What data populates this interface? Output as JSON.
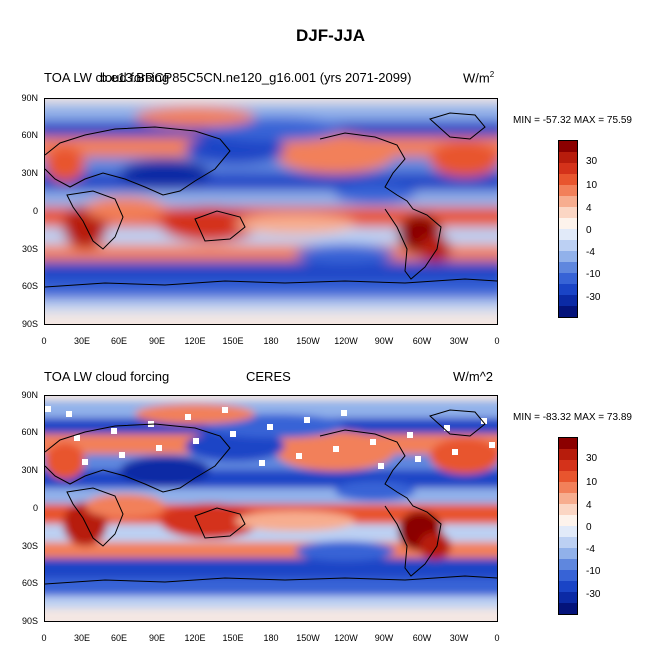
{
  "figure_title": "DJF-JJA",
  "panels": [
    {
      "id": "top",
      "left_title": "TOA LW cloud forcing",
      "center_title": "b.e13.BRCP85C5CN.ne120_g16.001 (yrs 2071-2099)",
      "units_base": "W/m",
      "units_sup": "2",
      "stats": "MIN = -57.32 MAX =  75.59"
    },
    {
      "id": "bottom",
      "left_title": "TOA LW cloud forcing",
      "center_title": "CERES",
      "units_base": "W/m^2",
      "units_sup": "",
      "stats": "MIN = -83.32 MAX =  73.89"
    }
  ],
  "lat_labels": [
    "90N",
    "60N",
    "30N",
    "0",
    "30S",
    "60S",
    "90S"
  ],
  "lon_labels": [
    "0",
    "30E",
    "60E",
    "90E",
    "120E",
    "150E",
    "180",
    "150W",
    "120W",
    "90W",
    "60W",
    "30W",
    "0"
  ],
  "colorbar": {
    "labels": [
      "30",
      "10",
      "4",
      "0",
      "-4",
      "-10",
      "-30"
    ],
    "colors": [
      "#8b0000",
      "#b71c0c",
      "#d4321a",
      "#e8552e",
      "#f2805a",
      "#f7ad8f",
      "#fbd6c4",
      "#fdf3ec",
      "#e1eaf9",
      "#bcd0f3",
      "#91b1ea",
      "#5f87de",
      "#3763d6",
      "#1a44c6",
      "#0b2aa5",
      "#04137a"
    ]
  },
  "colors": {
    "map_background": "#f4e7e3",
    "coastline": "#000000"
  }
}
